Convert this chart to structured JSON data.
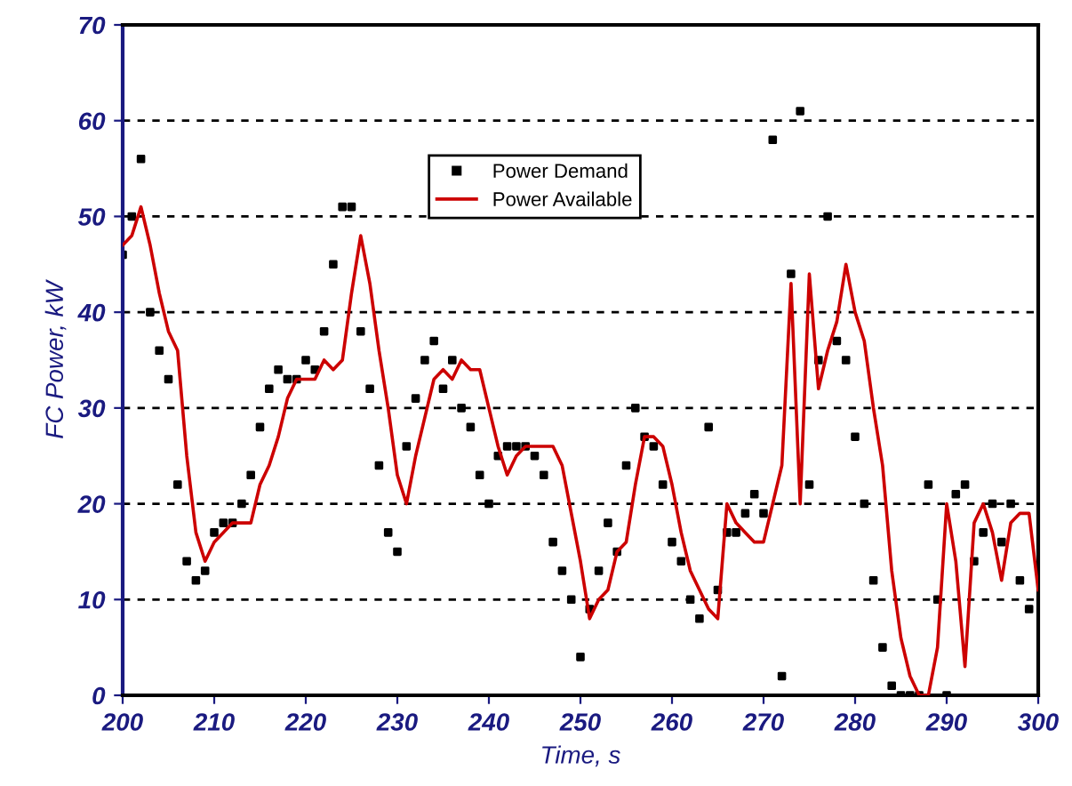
{
  "chart_data": {
    "type": "line",
    "xlabel": "Time, s",
    "ylabel": "FC Power, kW",
    "xlim": [
      200,
      300
    ],
    "xticks": [
      200,
      210,
      220,
      230,
      240,
      250,
      260,
      270,
      280,
      290,
      300
    ],
    "ylim": [
      0,
      70
    ],
    "yticks": [
      0,
      10,
      20,
      30,
      40,
      50,
      60,
      70
    ],
    "grid": "y",
    "legend": "top",
    "series": [
      {
        "name": "Power Demand",
        "type": "scatter",
        "marker": "square",
        "color": "#000000",
        "x": [
          200,
          201,
          202,
          203,
          204,
          205,
          206,
          207,
          208,
          209,
          210,
          211,
          212,
          213,
          214,
          215,
          216,
          217,
          218,
          219,
          220,
          221,
          222,
          223,
          224,
          225,
          226,
          227,
          228,
          229,
          230,
          231,
          232,
          233,
          234,
          235,
          236,
          237,
          238,
          239,
          240,
          241,
          242,
          243,
          244,
          245,
          246,
          247,
          248,
          249,
          250,
          251,
          252,
          253,
          254,
          255,
          256,
          257,
          258,
          259,
          260,
          261,
          262,
          263,
          264,
          265,
          266,
          267,
          268,
          269,
          270,
          271,
          272,
          273,
          274,
          275,
          276,
          277,
          278,
          279,
          280,
          281,
          282,
          283,
          284,
          285,
          286,
          287,
          288,
          289,
          290,
          291,
          292,
          293,
          294,
          295,
          296,
          297,
          298,
          299
        ],
        "values": [
          46,
          50,
          56,
          40,
          36,
          33,
          22,
          14,
          12,
          13,
          17,
          18,
          18,
          20,
          23,
          28,
          32,
          34,
          33,
          33,
          35,
          34,
          38,
          45,
          51,
          51,
          38,
          32,
          24,
          17,
          15,
          26,
          31,
          35,
          37,
          32,
          35,
          30,
          28,
          23,
          20,
          25,
          26,
          26,
          26,
          25,
          23,
          16,
          13,
          10,
          4,
          9,
          13,
          18,
          15,
          24,
          30,
          27,
          26,
          22,
          16,
          14,
          10,
          8,
          28,
          11,
          17,
          17,
          19,
          21,
          19,
          58,
          2,
          44,
          61,
          22,
          35,
          50,
          37,
          35,
          27,
          20,
          12,
          5,
          1,
          0,
          0,
          0,
          22,
          10,
          0,
          21,
          22,
          14,
          17,
          20,
          16,
          20,
          12,
          9
        ]
      },
      {
        "name": "Power Available",
        "marker": "none",
        "color": "#cc0000",
        "x": [
          200,
          201,
          202,
          203,
          204,
          205,
          206,
          207,
          208,
          209,
          210,
          211,
          212,
          213,
          214,
          215,
          216,
          217,
          218,
          219,
          220,
          221,
          222,
          223,
          224,
          225,
          226,
          227,
          228,
          229,
          230,
          231,
          232,
          233,
          234,
          235,
          236,
          237,
          238,
          239,
          240,
          241,
          242,
          243,
          244,
          245,
          246,
          247,
          248,
          249,
          250,
          251,
          252,
          253,
          254,
          255,
          256,
          257,
          258,
          259,
          260,
          261,
          262,
          263,
          264,
          265,
          266,
          267,
          268,
          269,
          270,
          271,
          272,
          273,
          274,
          275,
          276,
          277,
          278,
          279,
          280,
          281,
          282,
          283,
          284,
          285,
          286,
          287,
          288,
          289,
          290,
          291,
          292,
          293,
          294,
          295,
          296,
          297,
          298,
          299,
          300
        ],
        "values": [
          47,
          48,
          51,
          47,
          42,
          38,
          36,
          25,
          17,
          14,
          16,
          17,
          18,
          18,
          18,
          22,
          24,
          27,
          31,
          33,
          33,
          33,
          35,
          34,
          35,
          42,
          48,
          43,
          36,
          30,
          23,
          20,
          25,
          29,
          33,
          34,
          33,
          35,
          34,
          34,
          30,
          26,
          23,
          25,
          26,
          26,
          26,
          26,
          24,
          19,
          14,
          8,
          10,
          11,
          15,
          16,
          22,
          27,
          27,
          26,
          22,
          17,
          13,
          11,
          9,
          8,
          20,
          18,
          17,
          16,
          16,
          20,
          24,
          43,
          20,
          44,
          32,
          36,
          39,
          45,
          40,
          37,
          30,
          24,
          13,
          6,
          2,
          0,
          0,
          5,
          20,
          14,
          3,
          18,
          20,
          17,
          12,
          18,
          19,
          19,
          11
        ]
      }
    ]
  }
}
